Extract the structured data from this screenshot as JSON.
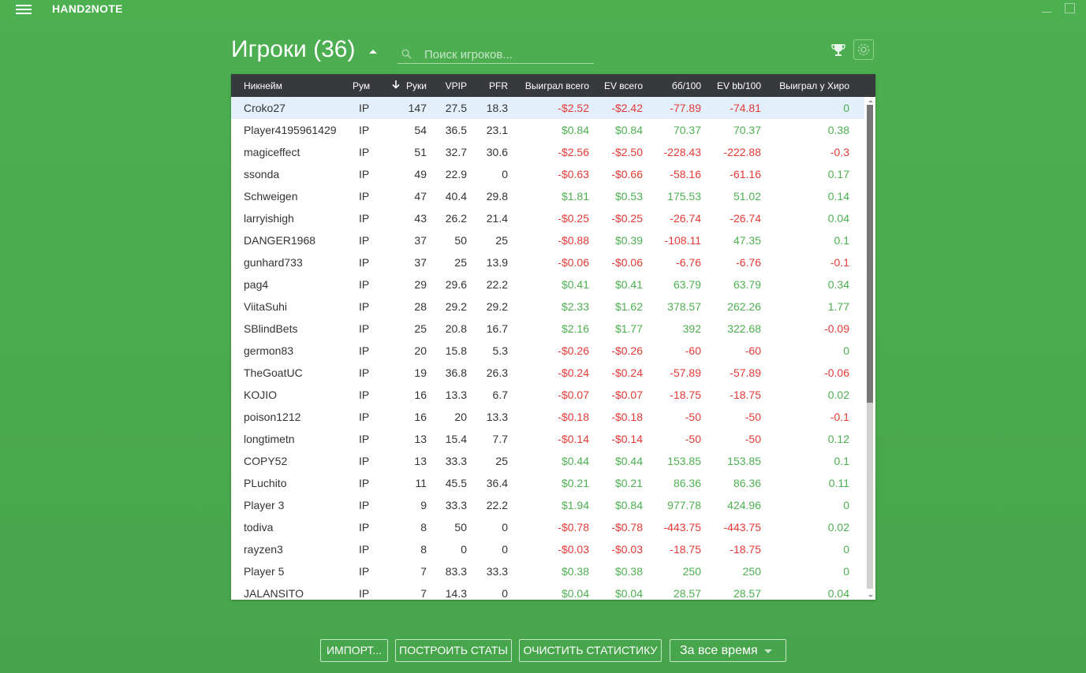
{
  "app": {
    "title": "HAND2NOTE"
  },
  "header": {
    "title": "Игроки (36)",
    "search_placeholder": "Поиск игроков..."
  },
  "colors": {
    "background": "#4caf50",
    "positive": "#4caf50",
    "negative": "#e53935",
    "header_bg": "#37393c",
    "selected_row": "#e3f0fb"
  },
  "icons": [
    "menu-icon",
    "minimize-icon",
    "maximize-icon",
    "sort-caret-icon",
    "search-icon",
    "trophy-icon",
    "gear-icon",
    "sort-down-arrow-icon",
    "dropdown-caret-icon"
  ],
  "table": {
    "columns": [
      "Никнейм",
      "Рум",
      "Руки",
      "VPIP",
      "PFR",
      "Выиграл всего",
      "EV всего",
      "бб/100",
      "EV bb/100",
      "Выиграл у Хиро"
    ],
    "sorted_column": "Руки",
    "rows": [
      [
        "Croko27",
        "IP",
        "147",
        "27.5",
        "18.3",
        "-$2.52",
        "-$2.42",
        "-77.89",
        "-74.81",
        "0"
      ],
      [
        "Player4195961429",
        "IP",
        "54",
        "36.5",
        "23.1",
        "$0.84",
        "$0.84",
        "70.37",
        "70.37",
        "0.38"
      ],
      [
        "magiceffect",
        "IP",
        "51",
        "32.7",
        "30.6",
        "-$2.56",
        "-$2.50",
        "-228.43",
        "-222.88",
        "-0.3"
      ],
      [
        "ssonda",
        "IP",
        "49",
        "22.9",
        "0",
        "-$0.63",
        "-$0.66",
        "-58.16",
        "-61.16",
        "0.17"
      ],
      [
        "Schweigen",
        "IP",
        "47",
        "40.4",
        "29.8",
        "$1.81",
        "$0.53",
        "175.53",
        "51.02",
        "0.14"
      ],
      [
        "larryishigh",
        "IP",
        "43",
        "26.2",
        "21.4",
        "-$0.25",
        "-$0.25",
        "-26.74",
        "-26.74",
        "0.04"
      ],
      [
        "DANGER1968",
        "IP",
        "37",
        "50",
        "25",
        "-$0.88",
        "$0.39",
        "-108.11",
        "47.35",
        "0.1"
      ],
      [
        "gunhard733",
        "IP",
        "37",
        "25",
        "13.9",
        "-$0.06",
        "-$0.06",
        "-6.76",
        "-6.76",
        "-0.1"
      ],
      [
        "pag4",
        "IP",
        "29",
        "29.6",
        "22.2",
        "$0.41",
        "$0.41",
        "63.79",
        "63.79",
        "0.34"
      ],
      [
        "ViitaSuhi",
        "IP",
        "28",
        "29.2",
        "29.2",
        "$2.33",
        "$1.62",
        "378.57",
        "262.26",
        "1.77"
      ],
      [
        "SBlindBets",
        "IP",
        "25",
        "20.8",
        "16.7",
        "$2.16",
        "$1.77",
        "392",
        "322.68",
        "-0.09"
      ],
      [
        "germon83",
        "IP",
        "20",
        "15.8",
        "5.3",
        "-$0.26",
        "-$0.26",
        "-60",
        "-60",
        "0"
      ],
      [
        "TheGoatUC",
        "IP",
        "19",
        "36.8",
        "26.3",
        "-$0.24",
        "-$0.24",
        "-57.89",
        "-57.89",
        "-0.06"
      ],
      [
        "KOJIO",
        "IP",
        "16",
        "13.3",
        "6.7",
        "-$0.07",
        "-$0.07",
        "-18.75",
        "-18.75",
        "0.02"
      ],
      [
        "poison1212",
        "IP",
        "16",
        "20",
        "13.3",
        "-$0.18",
        "-$0.18",
        "-50",
        "-50",
        "-0.1"
      ],
      [
        "longtimetn",
        "IP",
        "13",
        "15.4",
        "7.7",
        "-$0.14",
        "-$0.14",
        "-50",
        "-50",
        "0.12"
      ],
      [
        "COPY52",
        "IP",
        "13",
        "33.3",
        "25",
        "$0.44",
        "$0.44",
        "153.85",
        "153.85",
        "0.1"
      ],
      [
        "PLuchito",
        "IP",
        "11",
        "45.5",
        "36.4",
        "$0.21",
        "$0.21",
        "86.36",
        "86.36",
        "0.11"
      ],
      [
        "Player 3",
        "IP",
        "9",
        "33.3",
        "22.2",
        "$1.94",
        "$0.84",
        "977.78",
        "424.96",
        "0"
      ],
      [
        "todiva",
        "IP",
        "8",
        "50",
        "0",
        "-$0.78",
        "-$0.78",
        "-443.75",
        "-443.75",
        "0.02"
      ],
      [
        "rayzen3",
        "IP",
        "8",
        "0",
        "0",
        "-$0.03",
        "-$0.03",
        "-18.75",
        "-18.75",
        "0"
      ],
      [
        "Player 5",
        "IP",
        "7",
        "83.3",
        "33.3",
        "$0.38",
        "$0.38",
        "250",
        "250",
        "0"
      ],
      [
        "JALANSITO",
        "IP",
        "7",
        "14.3",
        "0",
        "$0.04",
        "$0.04",
        "28.57",
        "28.57",
        "0.04"
      ]
    ]
  },
  "footer": {
    "import_label": "ИМПОРТ...",
    "build_stats_label": "ПОСТРОИТЬ СТАТЫ",
    "clear_stats_label": "ОЧИСТИТЬ СТАТИСТИКУ",
    "period_label": "За все время"
  }
}
